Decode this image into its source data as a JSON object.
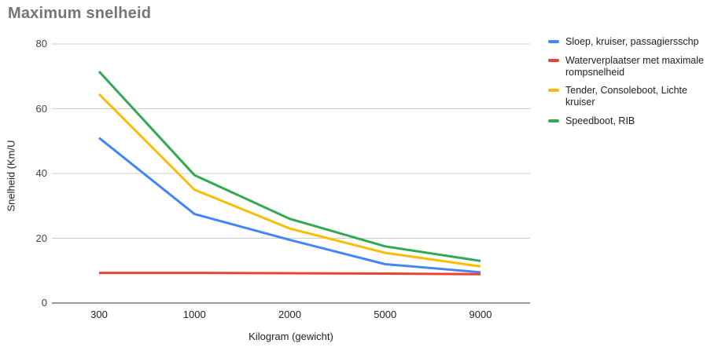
{
  "chart_data": {
    "type": "line",
    "title": "Maximum snelheid",
    "xlabel": "Kilogram (gewicht)",
    "ylabel": "Snelheid (Km/U",
    "categories": [
      "300",
      "1000",
      "2000",
      "5000",
      "9000"
    ],
    "series": [
      {
        "name": "Sloep, kruiser, passagiersschp",
        "color": "#4285f4",
        "values": [
          51,
          27.5,
          19.5,
          12,
          9.5
        ]
      },
      {
        "name": "Waterverplaatser met maximale rompsnelheid",
        "color": "#ea4335",
        "values": [
          9.3,
          9.3,
          9.2,
          9.1,
          8.9
        ]
      },
      {
        "name": "Tender, Consoleboot, Lichte kruiser",
        "color": "#fbbc04",
        "values": [
          64.5,
          35,
          23,
          15.5,
          11.3
        ]
      },
      {
        "name": "Speedboot, RIB",
        "color": "#34a853",
        "values": [
          71.5,
          39.5,
          26,
          17.5,
          13
        ]
      }
    ],
    "ylim": [
      0,
      80
    ],
    "yticks": [
      0,
      20,
      40,
      60,
      80
    ],
    "grid": true,
    "legend_position": "right",
    "colors": {
      "title_text": "#757575",
      "axis_tick_text": "#444444",
      "category_text": "#222222",
      "gridline": "#cccccc",
      "baseline": "#333333",
      "legend_text": "#212121",
      "background": "#ffffff"
    }
  }
}
